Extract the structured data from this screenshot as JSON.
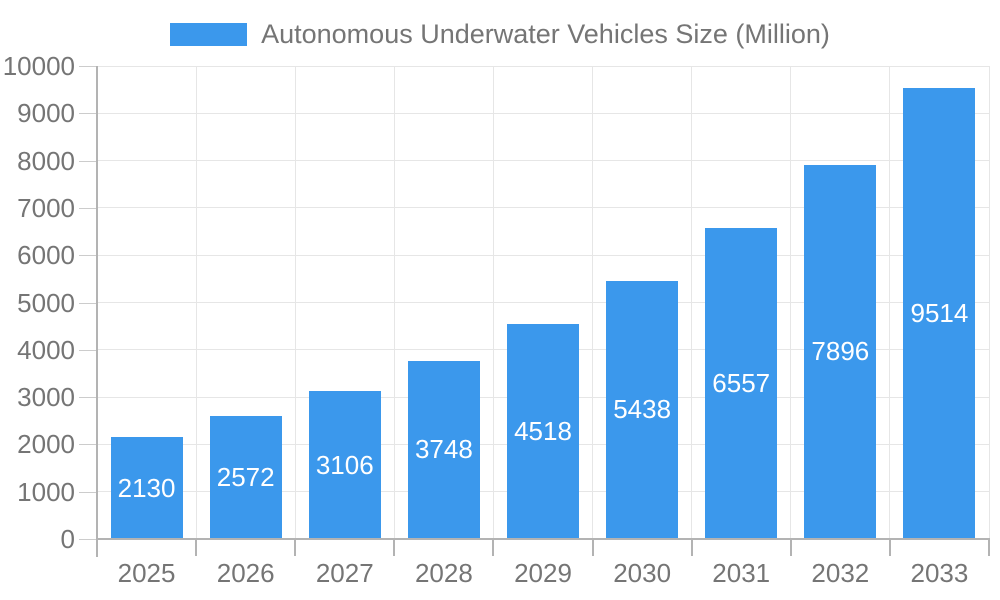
{
  "legend": {
    "label": "Autonomous Underwater Vehicles Size (Million)",
    "swatch_color": "#3b98ec"
  },
  "chart_data": {
    "type": "bar",
    "title": "Autonomous Underwater Vehicles Size (Million)",
    "categories": [
      "2025",
      "2026",
      "2027",
      "2028",
      "2029",
      "2030",
      "2031",
      "2032",
      "2033"
    ],
    "values": [
      2130,
      2572,
      3106,
      3748,
      4518,
      5438,
      6557,
      7896,
      9514
    ],
    "xlabel": "",
    "ylabel": "",
    "ylim": [
      0,
      10000
    ],
    "yticks": [
      0,
      1000,
      2000,
      3000,
      4000,
      5000,
      6000,
      7000,
      8000,
      9000,
      10000
    ],
    "grid": true,
    "legend_position": "top",
    "value_labels": "inside-center",
    "colors": {
      "bar": "#3b98ec",
      "value_label": "#ffffff",
      "axis": "#b3b3b3",
      "gridline": "#e6e6e6",
      "tick_minor": "#cccccc",
      "text": "#757575",
      "background": "#ffffff"
    }
  }
}
